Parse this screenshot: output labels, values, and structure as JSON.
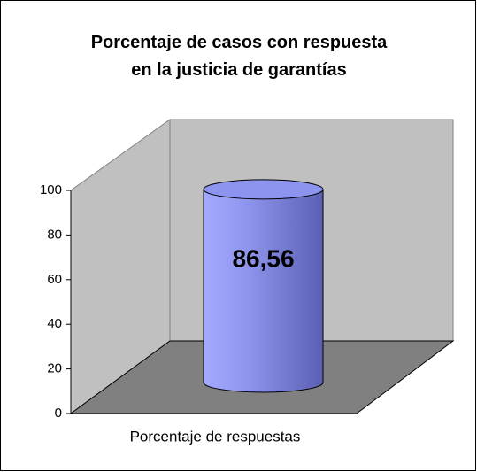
{
  "chart_data": {
    "type": "bar3d",
    "title": "Porcentaje de casos con respuesta en la justicia de garantías",
    "categories": [
      "Porcentaje de respuestas"
    ],
    "values": [
      86.56
    ],
    "value_labels": [
      "86,56"
    ],
    "color": "#8c94f0",
    "ylim": [
      0,
      100
    ],
    "yticks": [
      0,
      20,
      40,
      60,
      80,
      100
    ],
    "grid": false
  }
}
